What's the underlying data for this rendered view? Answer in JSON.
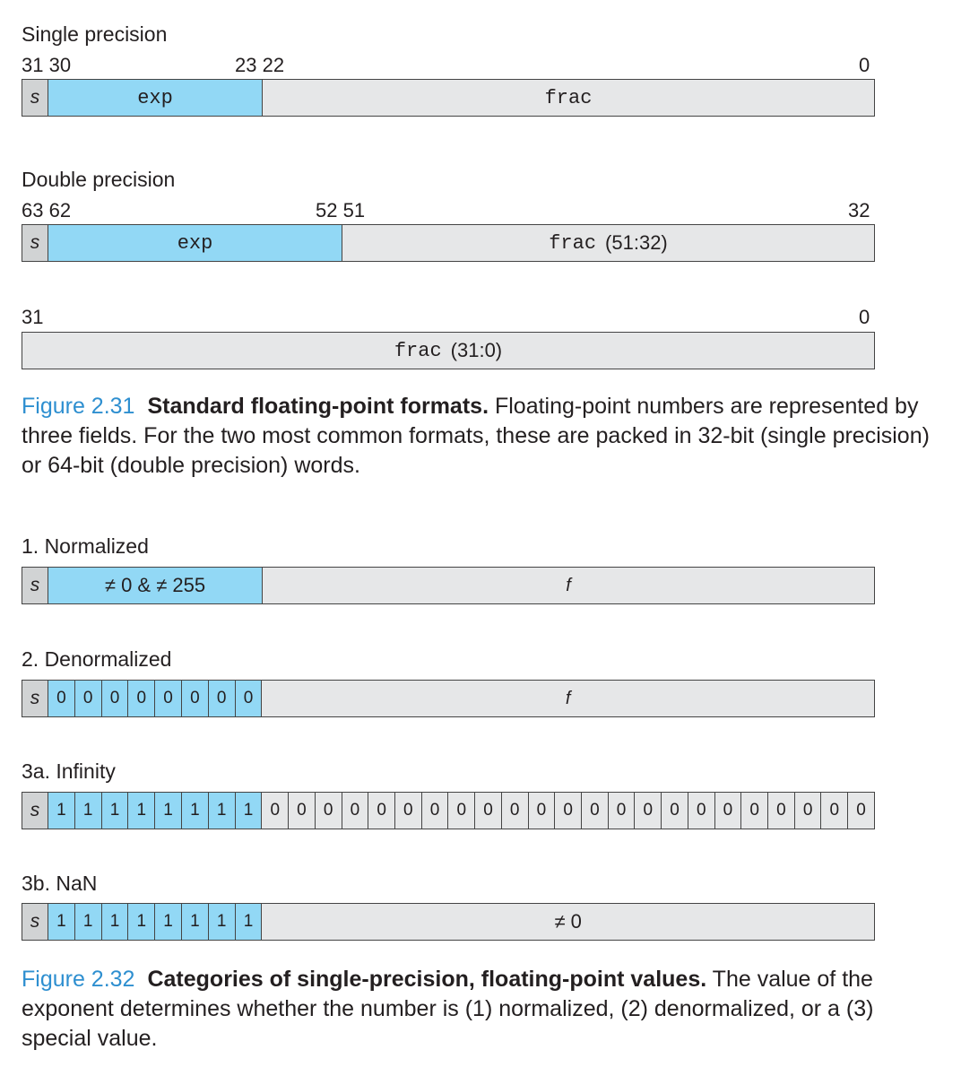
{
  "fig231": {
    "single": {
      "title": "Single precision",
      "bit_31_30": "31 30",
      "bit_23_22": "23 22",
      "bit_0": "0",
      "s": "s",
      "exp": "exp",
      "frac": "frac"
    },
    "double": {
      "title": "Double precision",
      "bit_63_62": "63 62",
      "bit_52_51": "52 51",
      "bit_32": "32",
      "s": "s",
      "exp": "exp",
      "frac_code": "frac",
      "frac_range": "(51:32)",
      "bit_31": "31",
      "bit_0": "0",
      "frac2_code": "frac",
      "frac2_range": "(31:0)"
    },
    "caption": {
      "number": "Figure 2.31",
      "title": "Standard floating-point formats.",
      "text": "Floating-point numbers are represented by three fields. For the two most common formats, these are packed in 32-bit (single precision) or 64-bit (double precision) words."
    }
  },
  "fig232": {
    "normalized": {
      "title": "1. Normalized",
      "s": "s",
      "exp": "≠ 0 & ≠ 255",
      "frac": "f"
    },
    "denormalized": {
      "title": "2. Denormalized",
      "s": "s",
      "exp_bits": [
        "0",
        "0",
        "0",
        "0",
        "0",
        "0",
        "0",
        "0"
      ],
      "frac": "f"
    },
    "infinity": {
      "title": "3a. Infinity",
      "s": "s",
      "exp_bits": [
        "1",
        "1",
        "1",
        "1",
        "1",
        "1",
        "1",
        "1"
      ],
      "frac_bits": [
        "0",
        "0",
        "0",
        "0",
        "0",
        "0",
        "0",
        "0",
        "0",
        "0",
        "0",
        "0",
        "0",
        "0",
        "0",
        "0",
        "0",
        "0",
        "0",
        "0",
        "0",
        "0",
        "0"
      ]
    },
    "nan": {
      "title": "3b. NaN",
      "s": "s",
      "exp_bits": [
        "1",
        "1",
        "1",
        "1",
        "1",
        "1",
        "1",
        "1"
      ],
      "frac": "≠ 0"
    },
    "caption": {
      "number": "Figure 2.32",
      "title": "Categories of single-precision, floating-point values.",
      "text": "The value of the exponent determines whether the number is (1) normalized, (2) denormalized, or a (3) special value."
    }
  },
  "colors": {
    "exp": "#92d8f5",
    "frac": "#e6e7e8",
    "sign": "#d1d3d4",
    "caption_number": "#2e8fd0"
  }
}
